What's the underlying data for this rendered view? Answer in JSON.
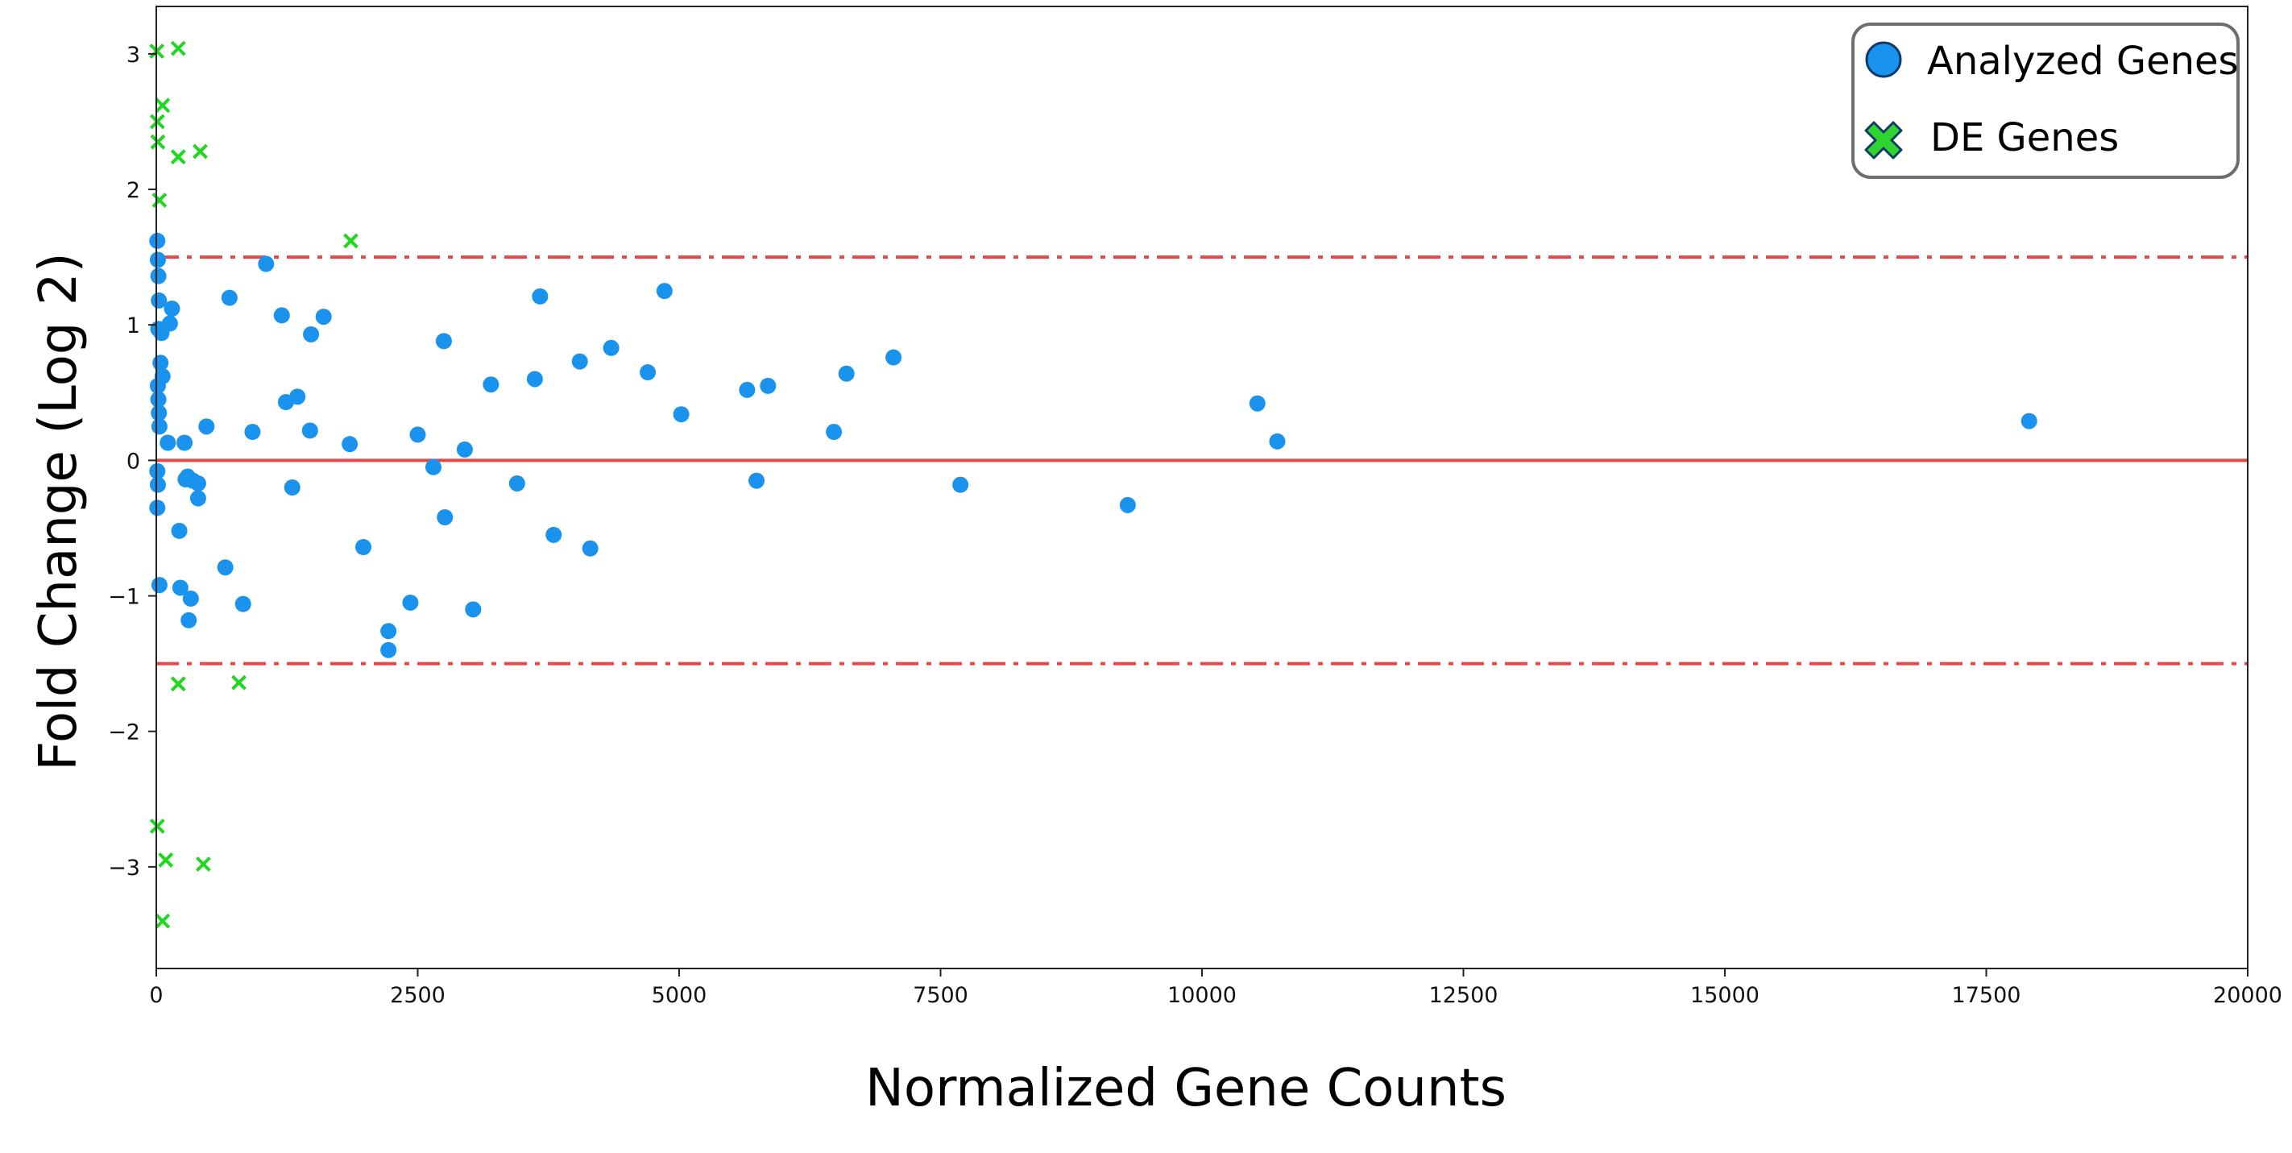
{
  "chart_data": {
    "type": "scatter",
    "xlabel": "Normalized Gene Counts",
    "ylabel": "Fold Change (Log 2)",
    "xlim": [
      0,
      20000
    ],
    "ylim": [
      -3.75,
      3.35
    ],
    "xticks": [
      0,
      2500,
      5000,
      7500,
      10000,
      12500,
      15000,
      17500,
      20000
    ],
    "yticks": [
      -3,
      -2,
      -1,
      0,
      1,
      2,
      3
    ],
    "ytick_labels": [
      "−3",
      "−2",
      "−1",
      "0",
      "1",
      "2",
      "3"
    ],
    "grid": false,
    "legend_position": "top-right",
    "reference_lines": [
      {
        "y": 0,
        "style": "solid",
        "color": "#e8474a"
      },
      {
        "y": 1.5,
        "style": "dashdot",
        "color": "#e8474a"
      },
      {
        "y": -1.5,
        "style": "dashdot",
        "color": "#e8474a"
      }
    ],
    "series": [
      {
        "name": "Analyzed Genes",
        "marker": "circle",
        "color": "#1a93ef",
        "points": [
          [
            10,
            1.62
          ],
          [
            15,
            1.48
          ],
          [
            20,
            1.36
          ],
          [
            25,
            1.18
          ],
          [
            20,
            0.97
          ],
          [
            50,
            0.94
          ],
          [
            40,
            0.72
          ],
          [
            60,
            0.62
          ],
          [
            15,
            0.55
          ],
          [
            20,
            0.45
          ],
          [
            25,
            0.35
          ],
          [
            30,
            0.25
          ],
          [
            10,
            -0.08
          ],
          [
            15,
            -0.18
          ],
          [
            10,
            -0.35
          ],
          [
            30,
            -0.92
          ],
          [
            150,
            1.12
          ],
          [
            130,
            1.01
          ],
          [
            110,
            0.13
          ],
          [
            270,
            0.13
          ],
          [
            280,
            -0.14
          ],
          [
            300,
            -0.12
          ],
          [
            350,
            -0.15
          ],
          [
            400,
            -0.17
          ],
          [
            400,
            -0.28
          ],
          [
            220,
            -0.52
          ],
          [
            230,
            -0.94
          ],
          [
            330,
            -1.02
          ],
          [
            310,
            -1.18
          ],
          [
            480,
            0.25
          ],
          [
            660,
            -0.79
          ],
          [
            700,
            1.2
          ],
          [
            830,
            -1.06
          ],
          [
            920,
            0.21
          ],
          [
            1050,
            1.45
          ],
          [
            1200,
            1.07
          ],
          [
            1240,
            0.43
          ],
          [
            1350,
            0.47
          ],
          [
            1300,
            -0.2
          ],
          [
            1470,
            0.22
          ],
          [
            1480,
            0.93
          ],
          [
            1600,
            1.06
          ],
          [
            1850,
            0.12
          ],
          [
            1980,
            -0.64
          ],
          [
            2220,
            -1.26
          ],
          [
            2220,
            -1.4
          ],
          [
            2430,
            -1.05
          ],
          [
            2500,
            0.19
          ],
          [
            2650,
            -0.05
          ],
          [
            2750,
            0.88
          ],
          [
            2760,
            -0.42
          ],
          [
            2950,
            0.08
          ],
          [
            3030,
            -1.1
          ],
          [
            3200,
            0.56
          ],
          [
            3450,
            -0.17
          ],
          [
            3620,
            0.6
          ],
          [
            3670,
            1.21
          ],
          [
            3800,
            -0.55
          ],
          [
            4050,
            0.73
          ],
          [
            4150,
            -0.65
          ],
          [
            4350,
            0.83
          ],
          [
            4700,
            0.65
          ],
          [
            4860,
            1.25
          ],
          [
            5020,
            0.34
          ],
          [
            5650,
            0.52
          ],
          [
            5740,
            -0.15
          ],
          [
            5850,
            0.55
          ],
          [
            6480,
            0.21
          ],
          [
            6600,
            0.64
          ],
          [
            7050,
            0.76
          ],
          [
            7690,
            -0.18
          ],
          [
            9290,
            -0.33
          ],
          [
            10530,
            0.42
          ],
          [
            10720,
            0.14
          ],
          [
            17910,
            0.29
          ]
        ]
      },
      {
        "name": "DE Genes",
        "marker": "x",
        "color": "#1ed81e",
        "points": [
          [
            5,
            3.02
          ],
          [
            210,
            3.04
          ],
          [
            60,
            2.62
          ],
          [
            10,
            2.5
          ],
          [
            15,
            2.35
          ],
          [
            210,
            2.24
          ],
          [
            420,
            2.28
          ],
          [
            30,
            1.92
          ],
          [
            1860,
            1.62
          ],
          [
            210,
            -1.65
          ],
          [
            790,
            -1.64
          ],
          [
            10,
            -2.7
          ],
          [
            90,
            -2.95
          ],
          [
            450,
            -2.98
          ],
          [
            60,
            -3.4
          ]
        ]
      }
    ]
  }
}
